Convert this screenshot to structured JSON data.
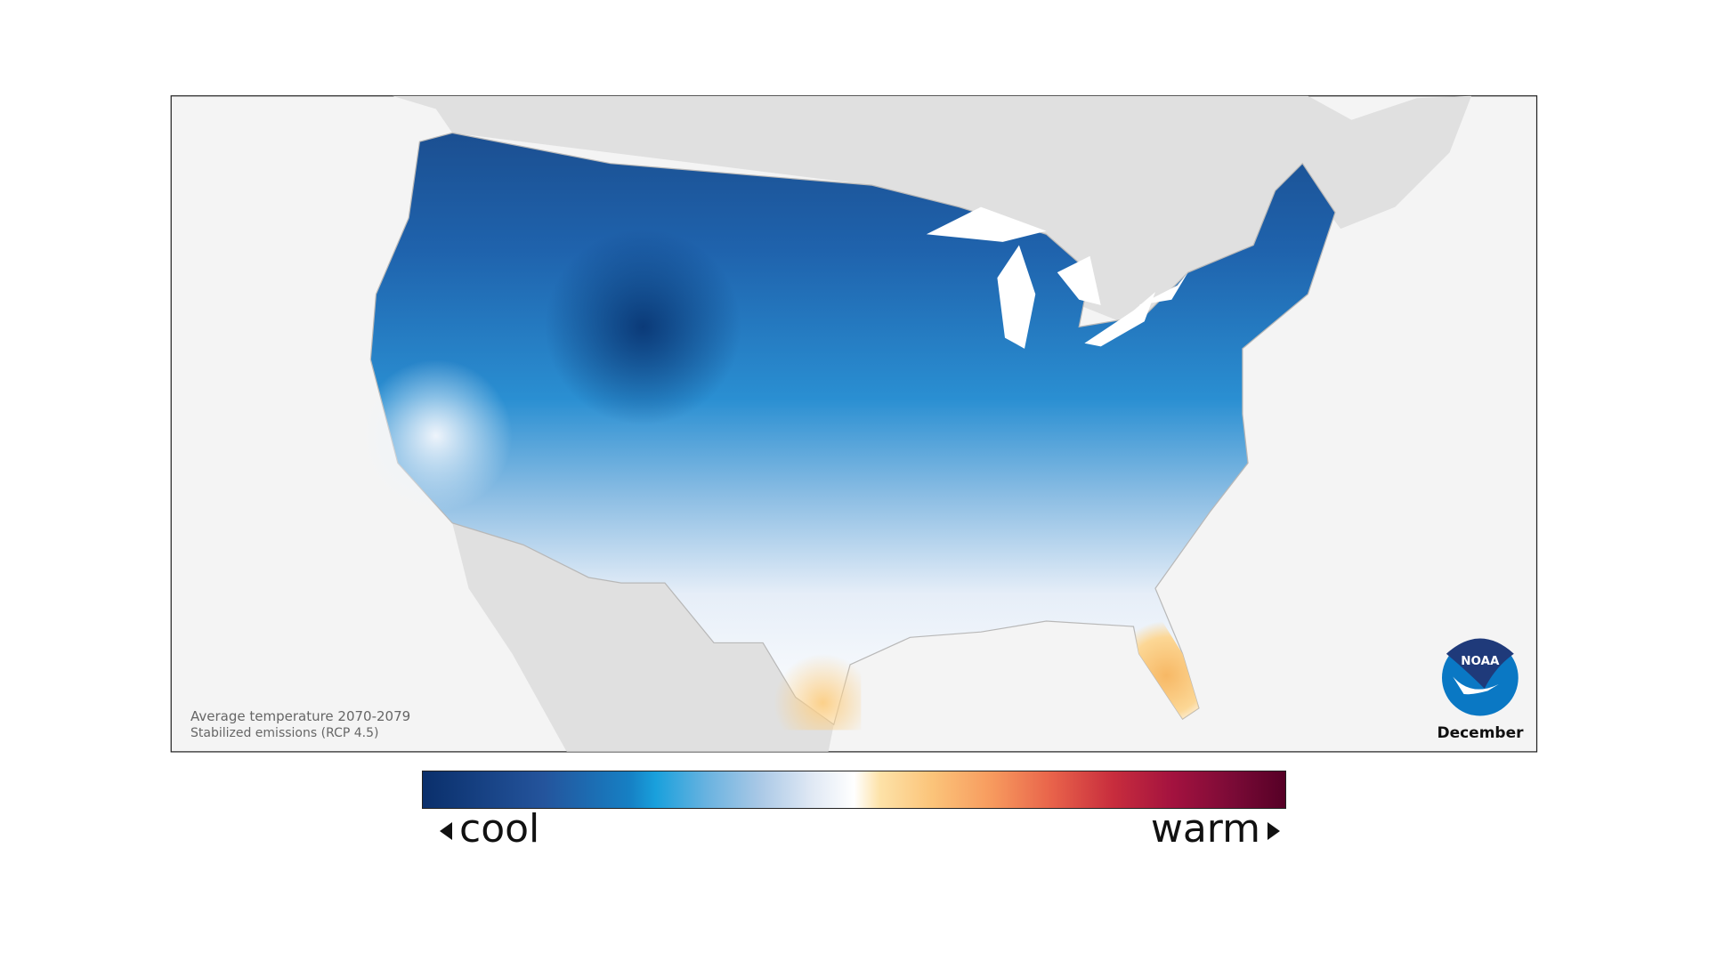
{
  "map": {
    "caption_line1": "Average temperature 2070-2079",
    "caption_line2": "Stabilized emissions (RCP 4.5)",
    "month": "December",
    "logo_text": "NOAA",
    "colors": {
      "background": "#f4f4f4",
      "land_outside": "#e0e0e0",
      "cool": "#0a2f6b",
      "neutral": "#ffffff",
      "warm": "#560026"
    }
  },
  "legend": {
    "cool_label": "cool",
    "warm_label": "warm",
    "left_arrow_icon": "triangle-left-icon",
    "right_arrow_icon": "triangle-right-icon"
  }
}
